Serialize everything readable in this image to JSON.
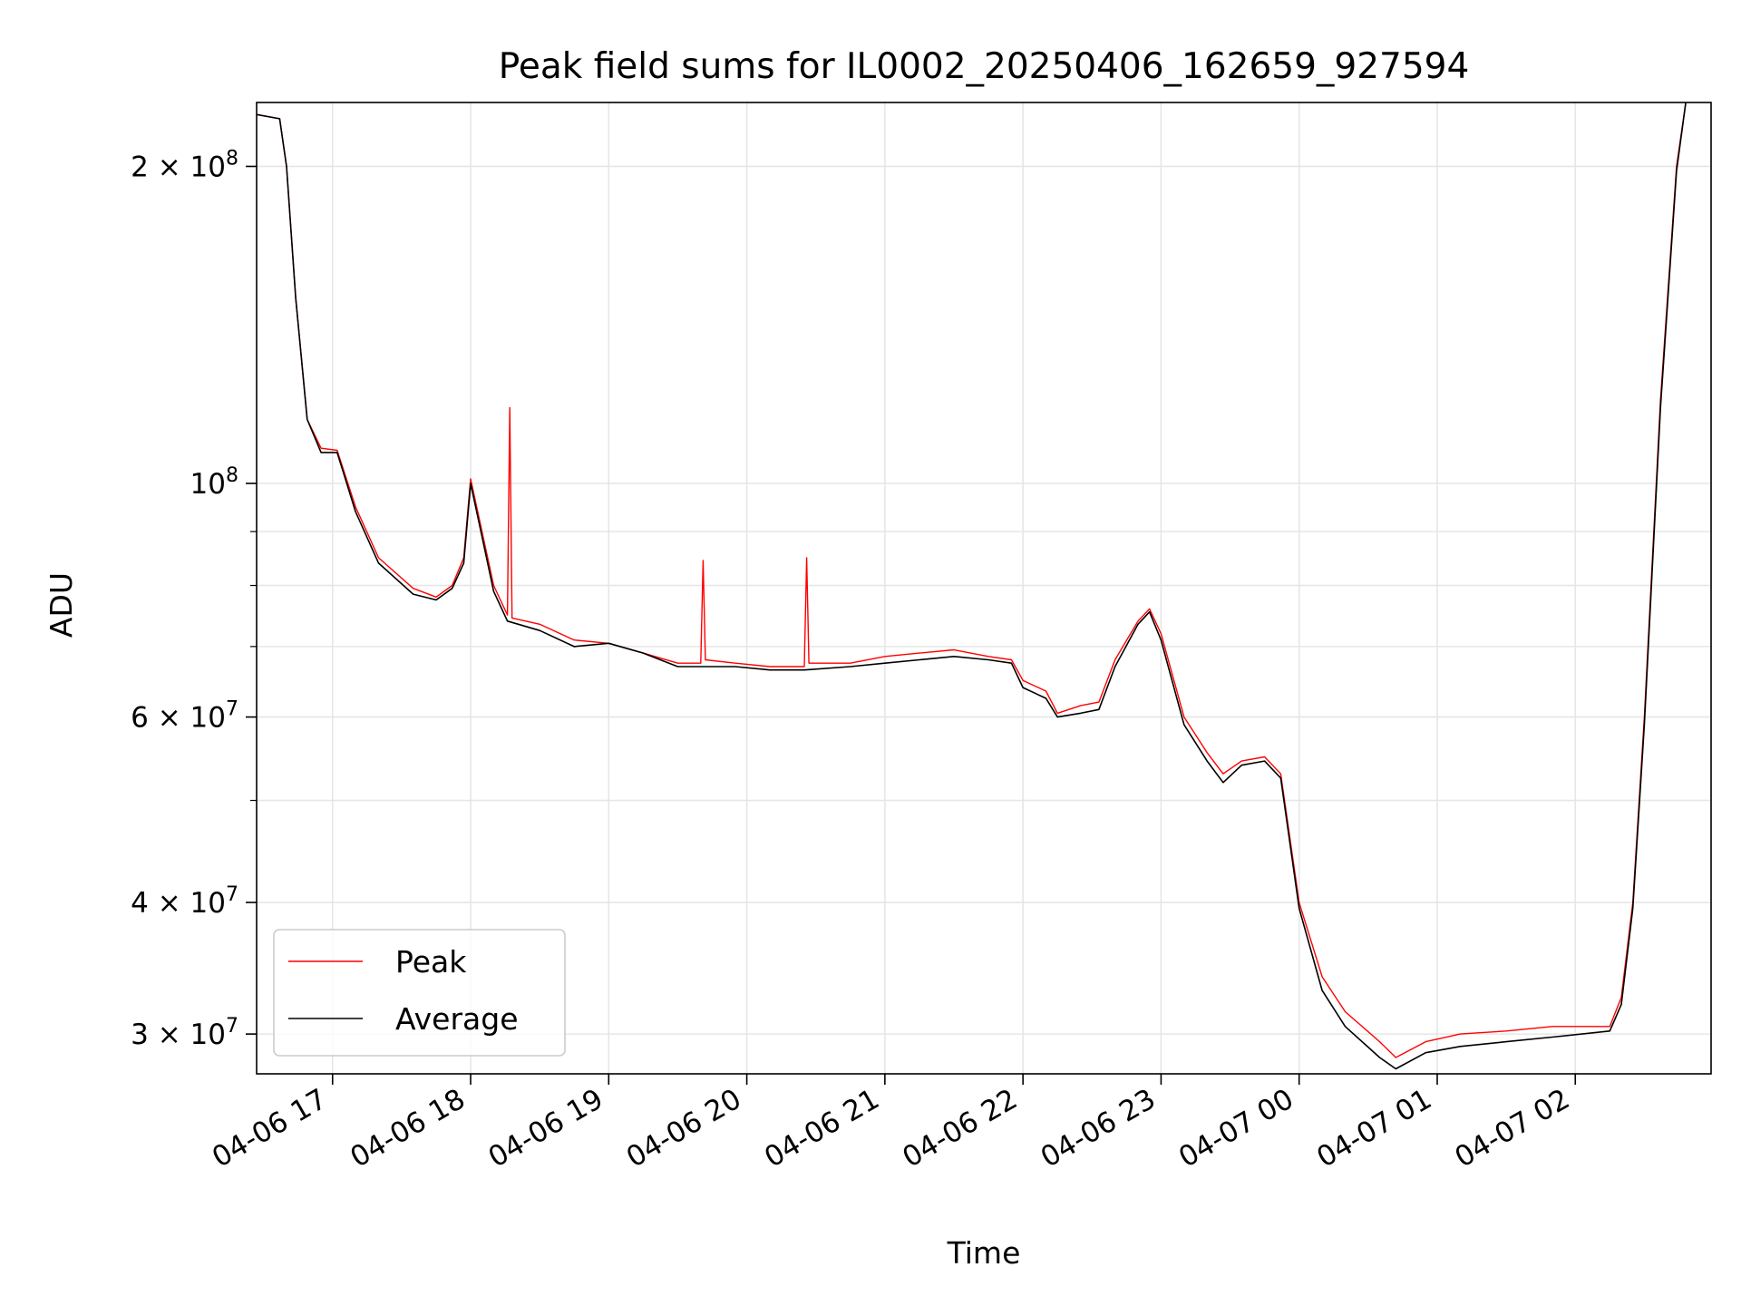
{
  "chart_data": {
    "type": "line",
    "title": "Peak field sums for IL0002_20250406_162659_927594",
    "xlabel": "Time",
    "ylabel": "ADU",
    "yscale": "log",
    "grid": true,
    "legend_position": "lower-left",
    "xlim": [
      "2025-04-06 16:27",
      "2025-04-07 02:59"
    ],
    "ylim": [
      27500000,
      230000000
    ],
    "x_ticks": [
      {
        "t": "2025-04-06 17:00",
        "label": "04-06 17"
      },
      {
        "t": "2025-04-06 18:00",
        "label": "04-06 18"
      },
      {
        "t": "2025-04-06 19:00",
        "label": "04-06 19"
      },
      {
        "t": "2025-04-06 20:00",
        "label": "04-06 20"
      },
      {
        "t": "2025-04-06 21:00",
        "label": "04-06 21"
      },
      {
        "t": "2025-04-06 22:00",
        "label": "04-06 22"
      },
      {
        "t": "2025-04-06 23:00",
        "label": "04-06 23"
      },
      {
        "t": "2025-04-07 00:00",
        "label": "04-07 00"
      },
      {
        "t": "2025-04-07 01:00",
        "label": "04-07 01"
      },
      {
        "t": "2025-04-07 02:00",
        "label": "04-07 02"
      }
    ],
    "y_ticks": [
      {
        "v": 200000000,
        "m": "2",
        "e": "8"
      },
      {
        "v": 100000000,
        "m": "",
        "e": "8"
      },
      {
        "v": 60000000,
        "m": "6",
        "e": "7"
      },
      {
        "v": 40000000,
        "m": "4",
        "e": "7"
      },
      {
        "v": 30000000,
        "m": "3",
        "e": "7"
      }
    ],
    "y_minor_ticks": [
      50000000,
      70000000,
      80000000,
      90000000
    ],
    "series": [
      {
        "name": "Peak",
        "color": "#ff0000",
        "points": [
          [
            "2025-04-06 16:27",
            224000000
          ],
          [
            "2025-04-06 16:37",
            222000000
          ],
          [
            "2025-04-06 16:40",
            200000000
          ],
          [
            "2025-04-06 16:44",
            150000000
          ],
          [
            "2025-04-06 16:49",
            115000000
          ],
          [
            "2025-04-06 16:55",
            108000000
          ],
          [
            "2025-04-06 17:02",
            107500000
          ],
          [
            "2025-04-06 17:10",
            95000000
          ],
          [
            "2025-04-06 17:20",
            85000000
          ],
          [
            "2025-04-06 17:35",
            79500000
          ],
          [
            "2025-04-06 17:45",
            78000000
          ],
          [
            "2025-04-06 17:52",
            80000000
          ],
          [
            "2025-04-06 17:57",
            85000000
          ],
          [
            "2025-04-06 18:00",
            101000000
          ],
          [
            "2025-04-06 18:04",
            92000000
          ],
          [
            "2025-04-06 18:10",
            80000000
          ],
          [
            "2025-04-06 18:16",
            75000000
          ],
          [
            "2025-04-06 18:17",
            118000000
          ],
          [
            "2025-04-06 18:18",
            74500000
          ],
          [
            "2025-04-06 18:30",
            73500000
          ],
          [
            "2025-04-06 18:45",
            71000000
          ],
          [
            "2025-04-06 19:00",
            70500000
          ],
          [
            "2025-04-06 19:15",
            69000000
          ],
          [
            "2025-04-06 19:30",
            67500000
          ],
          [
            "2025-04-06 19:40",
            67500000
          ],
          [
            "2025-04-06 19:41",
            84500000
          ],
          [
            "2025-04-06 19:42",
            68000000
          ],
          [
            "2025-04-06 19:55",
            67500000
          ],
          [
            "2025-04-06 20:10",
            67000000
          ],
          [
            "2025-04-06 20:25",
            67000000
          ],
          [
            "2025-04-06 20:26",
            85000000
          ],
          [
            "2025-04-06 20:27",
            67500000
          ],
          [
            "2025-04-06 20:45",
            67500000
          ],
          [
            "2025-04-06 21:00",
            68500000
          ],
          [
            "2025-04-06 21:15",
            69000000
          ],
          [
            "2025-04-06 21:30",
            69500000
          ],
          [
            "2025-04-06 21:45",
            68500000
          ],
          [
            "2025-04-06 21:55",
            68000000
          ],
          [
            "2025-04-06 22:00",
            65000000
          ],
          [
            "2025-04-06 22:10",
            63500000
          ],
          [
            "2025-04-06 22:15",
            60500000
          ],
          [
            "2025-04-06 22:25",
            61500000
          ],
          [
            "2025-04-06 22:33",
            62000000
          ],
          [
            "2025-04-06 22:40",
            68000000
          ],
          [
            "2025-04-06 22:50",
            74000000
          ],
          [
            "2025-04-06 22:55",
            76000000
          ],
          [
            "2025-04-06 23:00",
            72000000
          ],
          [
            "2025-04-06 23:10",
            60000000
          ],
          [
            "2025-04-06 23:20",
            55500000
          ],
          [
            "2025-04-06 23:27",
            53000000
          ],
          [
            "2025-04-06 23:35",
            54500000
          ],
          [
            "2025-04-06 23:45",
            55000000
          ],
          [
            "2025-04-06 23:52",
            53000000
          ],
          [
            "2025-04-07 00:00",
            40000000
          ],
          [
            "2025-04-07 00:10",
            34000000
          ],
          [
            "2025-04-07 00:20",
            31500000
          ],
          [
            "2025-04-07 00:35",
            29500000
          ],
          [
            "2025-04-07 00:42",
            28500000
          ],
          [
            "2025-04-07 00:55",
            29500000
          ],
          [
            "2025-04-07 01:10",
            30000000
          ],
          [
            "2025-04-07 01:30",
            30200000
          ],
          [
            "2025-04-07 01:50",
            30500000
          ],
          [
            "2025-04-07 02:15",
            30500000
          ],
          [
            "2025-04-07 02:20",
            32500000
          ],
          [
            "2025-04-07 02:25",
            40000000
          ],
          [
            "2025-04-07 02:30",
            60000000
          ],
          [
            "2025-04-07 02:37",
            120000000
          ],
          [
            "2025-04-07 02:44",
            200000000
          ],
          [
            "2025-04-07 02:48",
            230000000
          ]
        ]
      },
      {
        "name": "Average",
        "color": "#000000",
        "points": [
          [
            "2025-04-06 16:27",
            224000000
          ],
          [
            "2025-04-06 16:37",
            222000000
          ],
          [
            "2025-04-06 16:40",
            200000000
          ],
          [
            "2025-04-06 16:44",
            150000000
          ],
          [
            "2025-04-06 16:49",
            115000000
          ],
          [
            "2025-04-06 16:55",
            107000000
          ],
          [
            "2025-04-06 17:02",
            107000000
          ],
          [
            "2025-04-06 17:10",
            94000000
          ],
          [
            "2025-04-06 17:20",
            84000000
          ],
          [
            "2025-04-06 17:35",
            78500000
          ],
          [
            "2025-04-06 17:45",
            77500000
          ],
          [
            "2025-04-06 17:52",
            79500000
          ],
          [
            "2025-04-06 17:57",
            84000000
          ],
          [
            "2025-04-06 18:00",
            100000000
          ],
          [
            "2025-04-06 18:04",
            91000000
          ],
          [
            "2025-04-06 18:10",
            79000000
          ],
          [
            "2025-04-06 18:16",
            74000000
          ],
          [
            "2025-04-06 18:30",
            72500000
          ],
          [
            "2025-04-06 18:45",
            70000000
          ],
          [
            "2025-04-06 19:00",
            70500000
          ],
          [
            "2025-04-06 19:15",
            69000000
          ],
          [
            "2025-04-06 19:30",
            67000000
          ],
          [
            "2025-04-06 19:40",
            67000000
          ],
          [
            "2025-04-06 19:55",
            67000000
          ],
          [
            "2025-04-06 20:10",
            66500000
          ],
          [
            "2025-04-06 20:25",
            66500000
          ],
          [
            "2025-04-06 20:45",
            67000000
          ],
          [
            "2025-04-06 21:00",
            67500000
          ],
          [
            "2025-04-06 21:15",
            68000000
          ],
          [
            "2025-04-06 21:30",
            68500000
          ],
          [
            "2025-04-06 21:45",
            68000000
          ],
          [
            "2025-04-06 21:55",
            67500000
          ],
          [
            "2025-04-06 22:00",
            64000000
          ],
          [
            "2025-04-06 22:10",
            62500000
          ],
          [
            "2025-04-06 22:15",
            60000000
          ],
          [
            "2025-04-06 22:25",
            60500000
          ],
          [
            "2025-04-06 22:33",
            61000000
          ],
          [
            "2025-04-06 22:40",
            67000000
          ],
          [
            "2025-04-06 22:50",
            73500000
          ],
          [
            "2025-04-06 22:55",
            75500000
          ],
          [
            "2025-04-06 23:00",
            71000000
          ],
          [
            "2025-04-06 23:10",
            59000000
          ],
          [
            "2025-04-06 23:20",
            54500000
          ],
          [
            "2025-04-06 23:27",
            52000000
          ],
          [
            "2025-04-06 23:35",
            54000000
          ],
          [
            "2025-04-06 23:45",
            54500000
          ],
          [
            "2025-04-06 23:52",
            52500000
          ],
          [
            "2025-04-07 00:00",
            39500000
          ],
          [
            "2025-04-07 00:10",
            33000000
          ],
          [
            "2025-04-07 00:20",
            30500000
          ],
          [
            "2025-04-07 00:35",
            28500000
          ],
          [
            "2025-04-07 00:42",
            27800000
          ],
          [
            "2025-04-07 00:55",
            28800000
          ],
          [
            "2025-04-07 01:10",
            29200000
          ],
          [
            "2025-04-07 01:30",
            29500000
          ],
          [
            "2025-04-07 01:50",
            29800000
          ],
          [
            "2025-04-07 02:15",
            30200000
          ],
          [
            "2025-04-07 02:20",
            32000000
          ],
          [
            "2025-04-07 02:25",
            39500000
          ],
          [
            "2025-04-07 02:30",
            59000000
          ],
          [
            "2025-04-07 02:37",
            118000000
          ],
          [
            "2025-04-07 02:44",
            198000000
          ],
          [
            "2025-04-07 02:48",
            230000000
          ]
        ]
      }
    ]
  }
}
